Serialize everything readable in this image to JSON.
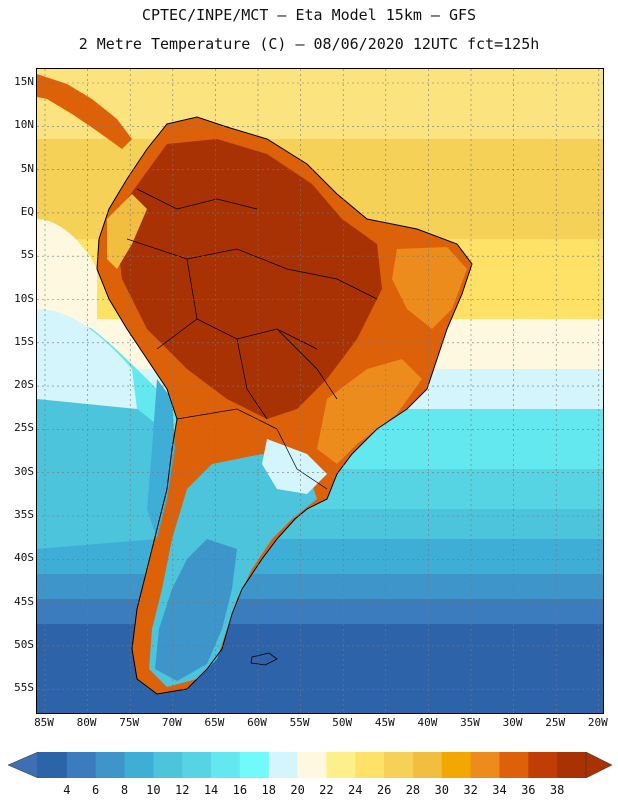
{
  "header": {
    "line1": "CPTEC/INPE/MCT –  Eta Model 15km – GFS",
    "line2": "2 Metre Temperature (C) – 08/06/2020 12UTC fct=125h"
  },
  "map": {
    "lat_labels": [
      "15N",
      "10N",
      "5N",
      "EQ",
      "5S",
      "10S",
      "15S",
      "20S",
      "25S",
      "30S",
      "35S",
      "40S",
      "45S",
      "50S",
      "55S"
    ],
    "lon_labels": [
      "85W",
      "80W",
      "75W",
      "70W",
      "65W",
      "60W",
      "55W",
      "50W",
      "45W",
      "40W",
      "35W",
      "30W",
      "25W",
      "20W"
    ]
  },
  "colorbar": {
    "labels": [
      "4",
      "6",
      "8",
      "10",
      "12",
      "14",
      "16",
      "18",
      "20",
      "22",
      "24",
      "26",
      "28",
      "30",
      "32",
      "34",
      "36",
      "38"
    ],
    "colors": [
      "#2c64a8",
      "#3a7cbd",
      "#3e95c9",
      "#3eaed6",
      "#4cc4dc",
      "#57d4e4",
      "#63e8ef",
      "#71fafa",
      "#d3f5fb",
      "#fff8e0",
      "#fdf08a",
      "#fde267",
      "#f6d157",
      "#f2be3f",
      "#f2a800",
      "#ec8c1c",
      "#dc6108",
      "#c03e05",
      "#a83204"
    ],
    "low_end_color": "#3f6fb3",
    "high_end_color": "#a83204"
  }
}
